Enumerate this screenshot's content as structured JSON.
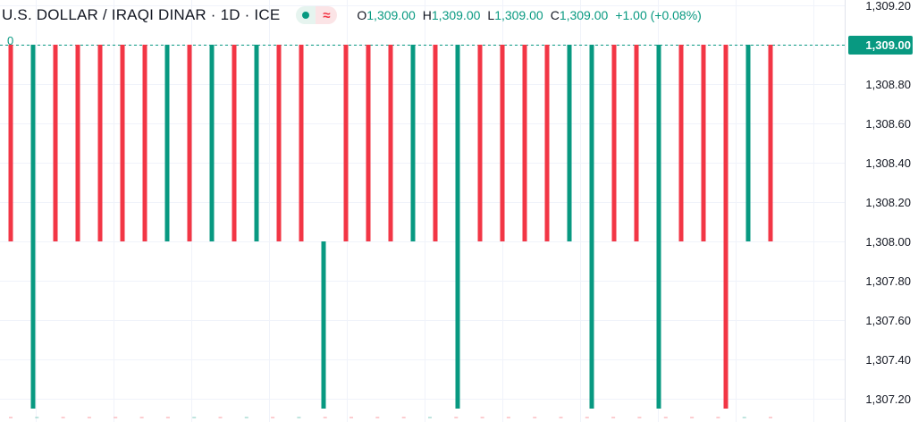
{
  "header": {
    "symbol_title": "U.S. DOLLAR / IRAQI DINAR · 1D · ICE",
    "badge_dot_icon": "market-open-dot-icon",
    "badge_wave_icon": "approximate-wave-icon",
    "ohlc": [
      {
        "key": "O",
        "value": "1,309.00"
      },
      {
        "key": "H",
        "value": "1,309.00"
      },
      {
        "key": "L",
        "value": "1,309.00"
      },
      {
        "key": "C",
        "value": "1,309.00"
      }
    ],
    "change": "+1.00 (+0.08%)"
  },
  "colors": {
    "up": "#089981",
    "down": "#f23645",
    "grid": "#f0f3fa",
    "axis_text": "#131722",
    "price_line": "#089981"
  },
  "chart_data": {
    "type": "candlestick",
    "y_axis": {
      "position": "right",
      "ticks": [
        "1,309.20",
        "1,309.00",
        "1,308.80",
        "1,308.60",
        "1,308.40",
        "1,308.20",
        "1,308.00",
        "1,307.80",
        "1,307.60",
        "1,307.40",
        "1,307.20"
      ],
      "range": [
        1307.15,
        1309.22
      ]
    },
    "last_price_label": "1,309.00",
    "price_line_value": 1309.0,
    "corner_label": "0",
    "baseline_bars": [
      {
        "color": "down",
        "value": 1309.0
      },
      {
        "color": "up",
        "value": 1309.0
      },
      {
        "color": "down",
        "value": 1309.0
      },
      {
        "color": "down",
        "value": 1309.0
      },
      {
        "color": "down",
        "value": 1309.0
      },
      {
        "color": "down",
        "value": 1309.0
      },
      {
        "color": "down",
        "value": 1309.0
      },
      {
        "color": "up",
        "value": 1309.0
      },
      {
        "color": "down",
        "value": 1309.0
      },
      {
        "color": "up",
        "value": 1309.0
      },
      {
        "color": "down",
        "value": 1309.0
      },
      {
        "color": "up",
        "value": 1309.0
      },
      {
        "color": "down",
        "value": 1309.0
      },
      {
        "color": "down",
        "value": 1309.0
      },
      {
        "color": "down",
        "value": 1309.0
      },
      {
        "color": "down",
        "value": 1309.0
      },
      {
        "color": "up",
        "value": 1309.0
      },
      {
        "color": "down",
        "value": 1309.0
      },
      {
        "color": "down",
        "value": 1309.0
      },
      {
        "color": "down",
        "value": 1309.0
      },
      {
        "color": "down",
        "value": 1309.0
      },
      {
        "color": "down",
        "value": 1309.0
      },
      {
        "color": "down",
        "value": 1309.0
      },
      {
        "color": "down",
        "value": 1309.0
      },
      {
        "color": "down",
        "value": 1309.0
      },
      {
        "color": "down",
        "value": 1309.0
      },
      {
        "color": "down",
        "value": 1309.0
      },
      {
        "color": "down",
        "value": 1309.0
      },
      {
        "color": "up",
        "value": 1309.0
      },
      {
        "color": "down",
        "value": 1309.0
      }
    ],
    "candles": [
      {
        "color": "down",
        "open": 1309.0,
        "close": 1308.0
      },
      {
        "color": "up",
        "open": 1307.15,
        "close": 1309.0
      },
      {
        "color": "down",
        "open": 1309.0,
        "close": 1308.0
      },
      {
        "color": "down",
        "open": 1309.0,
        "close": 1308.0
      },
      {
        "color": "down",
        "open": 1309.0,
        "close": 1308.0
      },
      {
        "color": "down",
        "open": 1309.0,
        "close": 1308.0
      },
      {
        "color": "down",
        "open": 1309.0,
        "close": 1308.0
      },
      {
        "color": "up",
        "open": 1308.0,
        "close": 1309.0
      },
      {
        "color": "down",
        "open": 1309.0,
        "close": 1308.0
      },
      {
        "color": "up",
        "open": 1308.0,
        "close": 1309.0
      },
      {
        "color": "down",
        "open": 1309.0,
        "close": 1308.0
      },
      {
        "color": "up",
        "open": 1308.0,
        "close": 1309.0
      },
      {
        "color": "down",
        "open": 1309.0,
        "close": 1308.0
      },
      {
        "color": "down",
        "open": 1309.0,
        "close": 1308.0
      },
      {
        "color": "up",
        "open": 1307.15,
        "close": 1308.0
      },
      {
        "color": "down",
        "open": 1309.0,
        "close": 1308.0
      },
      {
        "color": "down",
        "open": 1309.0,
        "close": 1308.0
      },
      {
        "color": "down",
        "open": 1309.0,
        "close": 1308.0
      },
      {
        "color": "up",
        "open": 1308.0,
        "close": 1309.0
      },
      {
        "color": "down",
        "open": 1309.0,
        "close": 1308.0
      },
      {
        "color": "up",
        "open": 1307.15,
        "close": 1309.0
      },
      {
        "color": "down",
        "open": 1309.0,
        "close": 1308.0
      },
      {
        "color": "down",
        "open": 1309.0,
        "close": 1308.0
      },
      {
        "color": "down",
        "open": 1309.0,
        "close": 1308.0
      },
      {
        "color": "down",
        "open": 1309.0,
        "close": 1308.0
      },
      {
        "color": "up",
        "open": 1308.0,
        "close": 1309.0
      },
      {
        "color": "up",
        "open": 1307.15,
        "close": 1309.0
      },
      {
        "color": "down",
        "open": 1309.0,
        "close": 1308.0
      },
      {
        "color": "down",
        "open": 1309.0,
        "close": 1308.0
      },
      {
        "color": "up",
        "open": 1307.15,
        "close": 1309.0
      },
      {
        "color": "down",
        "open": 1309.0,
        "close": 1308.0
      },
      {
        "color": "down",
        "open": 1309.0,
        "close": 1308.0
      },
      {
        "color": "down",
        "open": 1309.0,
        "close": 1307.15
      },
      {
        "color": "up",
        "open": 1308.0,
        "close": 1309.0
      },
      {
        "color": "down",
        "open": 1309.0,
        "close": 1308.0
      }
    ]
  }
}
